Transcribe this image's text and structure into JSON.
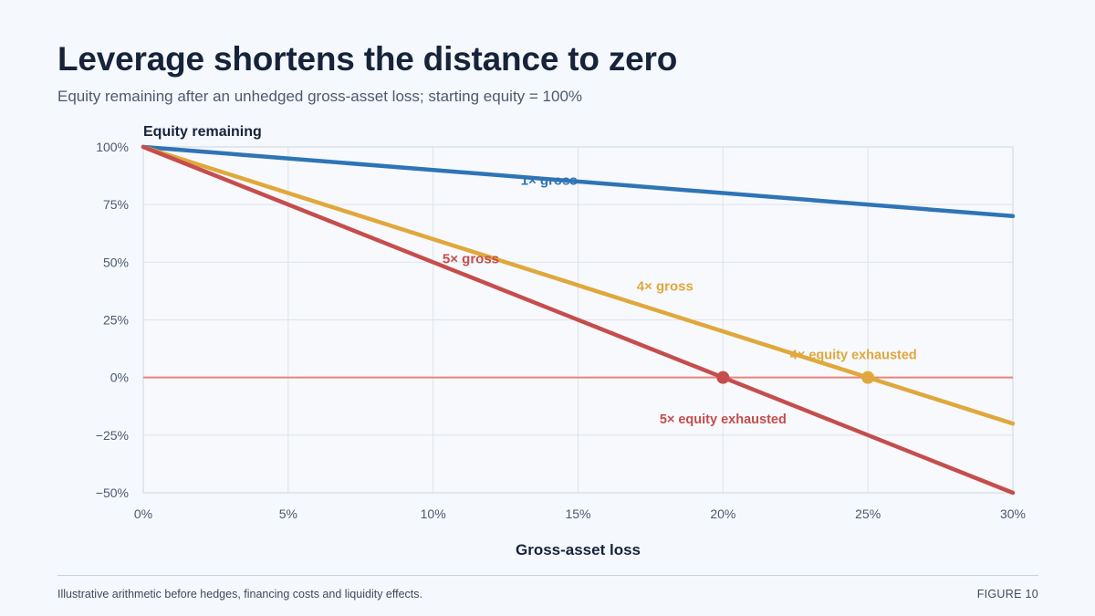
{
  "page": {
    "title": "Leverage shortens the distance to zero",
    "subtitle": "Equity remaining after an unhedged gross-asset loss; starting equity = 100%",
    "footer_note": "Illustrative arithmetic before hedges, financing costs and liquidity effects.",
    "figure_label": "FIGURE 10"
  },
  "chart_data": {
    "type": "line",
    "ylabel": "Equity remaining",
    "xlabel": "Gross-asset loss",
    "xlim": [
      0,
      30
    ],
    "ylim": [
      -50,
      100
    ],
    "x_ticks": [
      0,
      5,
      10,
      15,
      20,
      25,
      30
    ],
    "x_tick_labels": [
      "0%",
      "5%",
      "10%",
      "15%",
      "20%",
      "25%",
      "30%"
    ],
    "y_ticks": [
      100,
      75,
      50,
      25,
      0,
      -25,
      -50
    ],
    "y_tick_labels": [
      "100%",
      "75%",
      "50%",
      "25%",
      "0%",
      "−25%",
      "−50%"
    ],
    "grid": true,
    "zero_line_color": "#e8857a",
    "series": [
      {
        "name": "1× gross",
        "color": "#2f74b5",
        "x": [
          0,
          30
        ],
        "y": [
          100,
          70
        ],
        "label_at": [
          14,
          86
        ]
      },
      {
        "name": "4× gross",
        "color": "#e0a83c",
        "x": [
          0,
          30
        ],
        "y": [
          100,
          -20
        ],
        "label_at": [
          18,
          40
        ]
      },
      {
        "name": "5× gross",
        "color": "#c64d4d",
        "x": [
          0,
          30
        ],
        "y": [
          100,
          -50
        ],
        "label_at": [
          11.3,
          52
        ]
      }
    ],
    "annotations": [
      {
        "text": "4× equity exhausted",
        "x": 25,
        "y": 0,
        "color": "#e0a83c",
        "label_at": [
          24.5,
          10
        ],
        "anchor": "middle"
      },
      {
        "text": "5× equity exhausted",
        "x": 20,
        "y": 0,
        "color": "#c64d4d",
        "label_at": [
          20,
          -18
        ],
        "anchor": "middle"
      }
    ]
  }
}
